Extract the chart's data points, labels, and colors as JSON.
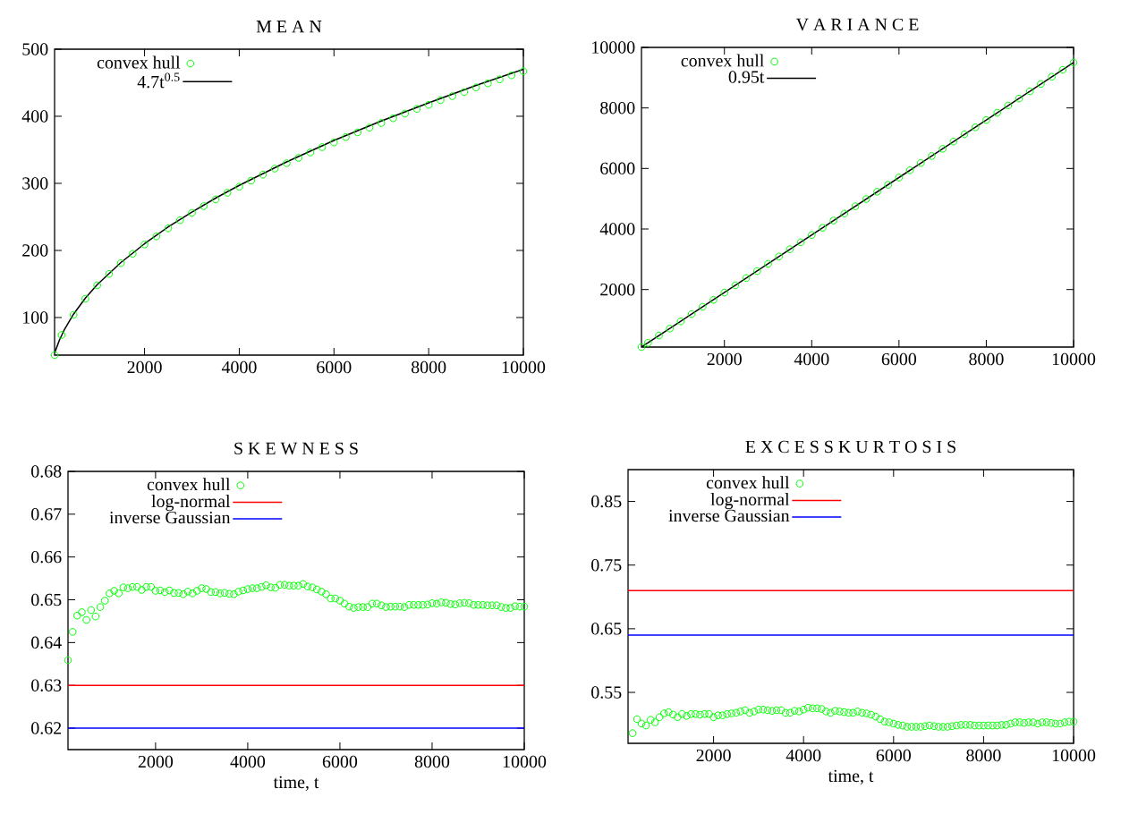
{
  "chart_data": [
    {
      "type": "scatter",
      "title": "M E A N",
      "xlim": [
        100,
        10000
      ],
      "ylim": [
        44,
        500
      ],
      "xticks": [
        2000,
        4000,
        6000,
        8000,
        10000
      ],
      "yticks": [
        100,
        200,
        300,
        400,
        500
      ],
      "legend": "top left",
      "series": [
        {
          "name": "convex hull",
          "type": "scatter",
          "marker": "circle",
          "color": "#00ff00",
          "x": [
            100,
            250,
            500,
            750,
            1000,
            1250,
            1500,
            1750,
            2000,
            2250,
            2500,
            2750,
            3000,
            3250,
            3500,
            3750,
            4000,
            4250,
            4500,
            4750,
            5000,
            5250,
            5500,
            5750,
            6000,
            6250,
            6500,
            6750,
            7000,
            7250,
            7500,
            7750,
            8000,
            8250,
            8500,
            8750,
            9000,
            9250,
            9500,
            9750,
            10000
          ],
          "values": [
            44,
            74,
            104,
            128,
            148,
            165,
            181,
            195,
            209,
            221,
            233,
            245,
            256,
            266,
            276,
            286,
            295,
            304,
            313,
            322,
            330,
            338,
            346,
            354,
            361,
            369,
            376,
            383,
            390,
            397,
            404,
            411,
            417,
            424,
            430,
            436,
            443,
            449,
            455,
            461,
            467
          ]
        },
        {
          "name": "4.7t$^{0.5}$",
          "type": "line",
          "color": "#000000",
          "x": [
            100,
            200,
            300,
            500,
            750,
            1000,
            1500,
            2000,
            2500,
            3000,
            3500,
            4000,
            5000,
            6000,
            7000,
            8000,
            9000,
            10000
          ],
          "values": [
            47,
            66,
            81,
            105,
            129,
            149,
            182,
            210,
            235,
            257,
            278,
            297,
            332,
            364,
            393,
            420,
            446,
            470
          ]
        }
      ]
    },
    {
      "type": "scatter",
      "title": "V A R I A N C E",
      "xlim": [
        100,
        10000
      ],
      "ylim": [
        100,
        10000
      ],
      "xticks": [
        2000,
        4000,
        6000,
        8000,
        10000
      ],
      "yticks": [
        2000,
        4000,
        6000,
        8000,
        10000
      ],
      "legend": "top left",
      "series": [
        {
          "name": "convex hull",
          "type": "scatter",
          "marker": "circle",
          "color": "#00ff00",
          "x": [
            100,
            250,
            500,
            750,
            1000,
            1250,
            1500,
            1750,
            2000,
            2250,
            2500,
            2750,
            3000,
            3250,
            3500,
            3750,
            4000,
            4250,
            4500,
            4750,
            5000,
            5250,
            5500,
            5750,
            6000,
            6250,
            6500,
            6750,
            7000,
            7250,
            7500,
            7750,
            8000,
            8250,
            8500,
            8750,
            9000,
            9250,
            9500,
            9750,
            10000
          ],
          "values": [
            100,
            240,
            480,
            710,
            950,
            1190,
            1430,
            1660,
            1900,
            2140,
            2380,
            2610,
            2850,
            3090,
            3330,
            3560,
            3800,
            4040,
            4280,
            4510,
            4750,
            4990,
            5230,
            5460,
            5700,
            5940,
            6180,
            6410,
            6650,
            6890,
            7130,
            7360,
            7600,
            7840,
            8080,
            8310,
            8550,
            8790,
            9030,
            9260,
            9500
          ]
        },
        {
          "name": "0.95t",
          "type": "line",
          "color": "#000000",
          "x": [
            100,
            10000
          ],
          "values": [
            100,
            9500
          ]
        }
      ]
    },
    {
      "type": "scatter",
      "title": "S K E W N E S S",
      "xlabel": "time, t",
      "xlim": [
        100,
        10000
      ],
      "ylim": [
        0.615,
        0.68
      ],
      "xticks": [
        2000,
        4000,
        6000,
        8000,
        10000
      ],
      "yticks": [
        0.62,
        0.63,
        0.64,
        0.65,
        0.66,
        0.67,
        0.68
      ],
      "legend": "top left",
      "series": [
        {
          "name": "convex hull",
          "type": "scatter",
          "marker": "circle",
          "color": "#00ff00",
          "x": [
            100,
            200,
            300,
            400,
            500,
            600,
            700,
            800,
            900,
            1000,
            1100,
            1200,
            1300,
            1400,
            1500,
            1600,
            1700,
            1800,
            1900,
            2000,
            2100,
            2200,
            2300,
            2400,
            2500,
            2600,
            2700,
            2800,
            2900,
            3000,
            3100,
            3200,
            3300,
            3400,
            3500,
            3600,
            3700,
            3800,
            3900,
            4000,
            4100,
            4200,
            4300,
            4400,
            4500,
            4600,
            4700,
            4800,
            4900,
            5000,
            5100,
            5200,
            5300,
            5400,
            5500,
            5600,
            5700,
            5800,
            5900,
            6000,
            6100,
            6200,
            6300,
            6400,
            6500,
            6600,
            6700,
            6800,
            6900,
            7000,
            7100,
            7200,
            7300,
            7400,
            7500,
            7600,
            7700,
            7800,
            7900,
            8000,
            8100,
            8200,
            8300,
            8400,
            8500,
            8600,
            8700,
            8800,
            8900,
            9000,
            9100,
            9200,
            9300,
            9400,
            9500,
            9600,
            9700,
            9800,
            9900,
            10000
          ],
          "values": [
            0.6359,
            0.6425,
            0.6463,
            0.6471,
            0.6453,
            0.6476,
            0.6461,
            0.6483,
            0.6498,
            0.6515,
            0.6521,
            0.6515,
            0.6529,
            0.6527,
            0.653,
            0.653,
            0.6523,
            0.653,
            0.653,
            0.6521,
            0.6522,
            0.6518,
            0.6522,
            0.6516,
            0.6516,
            0.6513,
            0.6519,
            0.6515,
            0.6521,
            0.6527,
            0.6525,
            0.6518,
            0.6518,
            0.6515,
            0.6516,
            0.6514,
            0.6513,
            0.6519,
            0.6522,
            0.6525,
            0.6527,
            0.6527,
            0.653,
            0.6534,
            0.6529,
            0.6528,
            0.6535,
            0.6535,
            0.6533,
            0.6533,
            0.6533,
            0.6537,
            0.6531,
            0.6529,
            0.6524,
            0.6519,
            0.6513,
            0.6503,
            0.6503,
            0.6498,
            0.6491,
            0.6484,
            0.6481,
            0.6483,
            0.6483,
            0.6483,
            0.6491,
            0.6491,
            0.6487,
            0.6483,
            0.6484,
            0.6484,
            0.6484,
            0.6483,
            0.6488,
            0.6488,
            0.6488,
            0.6488,
            0.6489,
            0.6492,
            0.6491,
            0.6494,
            0.6493,
            0.649,
            0.6489,
            0.6492,
            0.6493,
            0.6492,
            0.6488,
            0.6488,
            0.6488,
            0.6487,
            0.6487,
            0.6487,
            0.6483,
            0.6481,
            0.6481,
            0.6485,
            0.6484,
            0.6484
          ]
        },
        {
          "name": "log-normal",
          "type": "line",
          "color": "#ff0000",
          "x": [
            100,
            10000
          ],
          "values": [
            0.63,
            0.63
          ]
        },
        {
          "name": "inverse Gaussian",
          "type": "line",
          "color": "#0000ff",
          "x": [
            100,
            10000
          ],
          "values": [
            0.62,
            0.62
          ]
        }
      ]
    },
    {
      "type": "scatter",
      "title": "E X C E S S   K U R T O S I S",
      "xlabel": "time, t",
      "xlim": [
        100,
        10000
      ],
      "ylim": [
        0.47,
        0.9
      ],
      "xticks": [
        2000,
        4000,
        6000,
        8000,
        10000
      ],
      "yticks": [
        0.55,
        0.65,
        0.75,
        0.85
      ],
      "legend": "top left",
      "series": [
        {
          "name": "convex hull",
          "type": "scatter",
          "marker": "circle",
          "color": "#00ff00",
          "x": [
            200,
            300,
            400,
            500,
            600,
            700,
            800,
            900,
            1000,
            1100,
            1200,
            1300,
            1400,
            1500,
            1600,
            1700,
            1800,
            1900,
            2000,
            2100,
            2200,
            2300,
            2400,
            2500,
            2600,
            2700,
            2800,
            2900,
            3000,
            3100,
            3200,
            3300,
            3400,
            3500,
            3600,
            3700,
            3800,
            3900,
            4000,
            4100,
            4200,
            4300,
            4400,
            4500,
            4600,
            4700,
            4800,
            4900,
            5000,
            5100,
            5200,
            5300,
            5400,
            5500,
            5600,
            5700,
            5800,
            5900,
            6000,
            6100,
            6200,
            6300,
            6400,
            6500,
            6600,
            6700,
            6800,
            6900,
            7000,
            7100,
            7200,
            7300,
            7400,
            7500,
            7600,
            7700,
            7800,
            7900,
            8000,
            8100,
            8200,
            8300,
            8400,
            8500,
            8600,
            8700,
            8800,
            8900,
            9000,
            9100,
            9200,
            9300,
            9400,
            9500,
            9600,
            9700,
            9800,
            9900,
            10000
          ],
          "values": [
            0.486,
            0.508,
            0.501,
            0.498,
            0.507,
            0.503,
            0.511,
            0.517,
            0.519,
            0.515,
            0.511,
            0.516,
            0.513,
            0.516,
            0.516,
            0.515,
            0.516,
            0.516,
            0.511,
            0.514,
            0.514,
            0.516,
            0.517,
            0.518,
            0.52,
            0.522,
            0.518,
            0.52,
            0.523,
            0.523,
            0.522,
            0.521,
            0.522,
            0.522,
            0.518,
            0.518,
            0.521,
            0.52,
            0.523,
            0.526,
            0.525,
            0.525,
            0.524,
            0.52,
            0.518,
            0.521,
            0.52,
            0.519,
            0.518,
            0.518,
            0.52,
            0.518,
            0.517,
            0.515,
            0.512,
            0.508,
            0.504,
            0.503,
            0.501,
            0.499,
            0.498,
            0.496,
            0.496,
            0.496,
            0.496,
            0.497,
            0.498,
            0.497,
            0.496,
            0.496,
            0.496,
            0.497,
            0.498,
            0.499,
            0.499,
            0.499,
            0.498,
            0.498,
            0.498,
            0.498,
            0.498,
            0.498,
            0.499,
            0.499,
            0.501,
            0.503,
            0.503,
            0.502,
            0.503,
            0.503,
            0.501,
            0.503,
            0.503,
            0.502,
            0.501,
            0.501,
            0.503,
            0.504,
            0.504
          ]
        },
        {
          "name": "log-normal",
          "type": "line",
          "color": "#ff0000",
          "x": [
            100,
            10000
          ],
          "values": [
            0.71,
            0.71
          ]
        },
        {
          "name": "inverse Gaussian",
          "type": "line",
          "color": "#0000ff",
          "x": [
            100,
            10000
          ],
          "values": [
            0.64,
            0.64
          ]
        }
      ]
    }
  ]
}
